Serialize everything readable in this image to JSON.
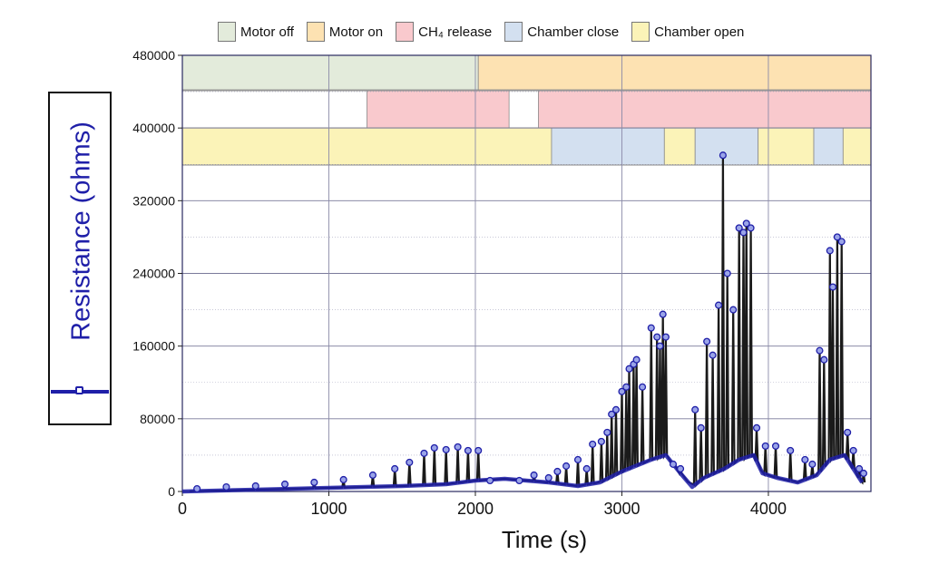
{
  "legend": [
    {
      "label": "Motor off",
      "color": "#e3ebdb"
    },
    {
      "label": "Motor on",
      "color": "#fde2b2"
    },
    {
      "label": "CH₄ release",
      "color": "#f9c9cd"
    },
    {
      "label": "Chamber close",
      "color": "#d3e0f0"
    },
    {
      "label": "Chamber open",
      "color": "#fbf3b8"
    }
  ],
  "chart_data": {
    "type": "line",
    "title": "",
    "xlabel": "Time (s)",
    "ylabel": "Resistance (ohms)",
    "xlim": [
      0,
      4700
    ],
    "ylim": [
      0,
      480000
    ],
    "xticks": [
      0,
      1000,
      2000,
      3000,
      4000
    ],
    "yticks": [
      0,
      80000,
      160000,
      240000,
      320000,
      400000,
      480000
    ],
    "grid": true,
    "series": [
      {
        "name": "Resistance (ohms)",
        "color": "#1f1fa8",
        "peaks": [
          [
            100,
            3000
          ],
          [
            300,
            5000
          ],
          [
            500,
            6000
          ],
          [
            700,
            8000
          ],
          [
            900,
            10000
          ],
          [
            1100,
            13000
          ],
          [
            1300,
            18000
          ],
          [
            1450,
            25000
          ],
          [
            1550,
            32000
          ],
          [
            1650,
            42000
          ],
          [
            1720,
            48000
          ],
          [
            1800,
            46000
          ],
          [
            1880,
            49000
          ],
          [
            1950,
            45000
          ],
          [
            2020,
            45000
          ],
          [
            2100,
            12000
          ],
          [
            2300,
            12000
          ],
          [
            2400,
            18000
          ],
          [
            2500,
            15000
          ],
          [
            2560,
            22000
          ],
          [
            2620,
            28000
          ],
          [
            2700,
            35000
          ],
          [
            2760,
            25000
          ],
          [
            2800,
            52000
          ],
          [
            2860,
            55000
          ],
          [
            2900,
            65000
          ],
          [
            2930,
            85000
          ],
          [
            2960,
            90000
          ],
          [
            3000,
            110000
          ],
          [
            3030,
            115000
          ],
          [
            3050,
            135000
          ],
          [
            3080,
            140000
          ],
          [
            3100,
            145000
          ],
          [
            3140,
            115000
          ],
          [
            3200,
            180000
          ],
          [
            3240,
            170000
          ],
          [
            3260,
            160000
          ],
          [
            3280,
            195000
          ],
          [
            3300,
            170000
          ],
          [
            3350,
            30000
          ],
          [
            3400,
            25000
          ],
          [
            3500,
            90000
          ],
          [
            3540,
            70000
          ],
          [
            3580,
            165000
          ],
          [
            3620,
            150000
          ],
          [
            3660,
            205000
          ],
          [
            3690,
            370000
          ],
          [
            3720,
            240000
          ],
          [
            3760,
            200000
          ],
          [
            3800,
            290000
          ],
          [
            3830,
            285000
          ],
          [
            3850,
            295000
          ],
          [
            3880,
            290000
          ],
          [
            3920,
            70000
          ],
          [
            3980,
            50000
          ],
          [
            4050,
            50000
          ],
          [
            4150,
            45000
          ],
          [
            4250,
            35000
          ],
          [
            4300,
            30000
          ],
          [
            4350,
            155000
          ],
          [
            4380,
            145000
          ],
          [
            4420,
            265000
          ],
          [
            4440,
            225000
          ],
          [
            4470,
            280000
          ],
          [
            4500,
            275000
          ],
          [
            4540,
            65000
          ],
          [
            4580,
            45000
          ],
          [
            4620,
            25000
          ],
          [
            4650,
            20000
          ]
        ],
        "envelope": [
          [
            0,
            0
          ],
          [
            500,
            2000
          ],
          [
            1000,
            4000
          ],
          [
            1500,
            6000
          ],
          [
            1800,
            8000
          ],
          [
            2000,
            12000
          ],
          [
            2200,
            14000
          ],
          [
            2500,
            10000
          ],
          [
            2700,
            6000
          ],
          [
            2850,
            10000
          ],
          [
            3000,
            22000
          ],
          [
            3200,
            35000
          ],
          [
            3300,
            40000
          ],
          [
            3400,
            20000
          ],
          [
            3480,
            5000
          ],
          [
            3560,
            15000
          ],
          [
            3700,
            25000
          ],
          [
            3800,
            35000
          ],
          [
            3900,
            40000
          ],
          [
            3960,
            20000
          ],
          [
            4060,
            15000
          ],
          [
            4200,
            10000
          ],
          [
            4330,
            18000
          ],
          [
            4420,
            35000
          ],
          [
            4520,
            40000
          ],
          [
            4600,
            20000
          ],
          [
            4640,
            10000
          ]
        ]
      }
    ],
    "state_bands": [
      {
        "row": "motor",
        "segments": [
          {
            "start": 0,
            "end": 2020,
            "state": "Motor off"
          },
          {
            "start": 2020,
            "end": 4700,
            "state": "Motor on"
          }
        ]
      },
      {
        "row": "ch4",
        "segments": [
          {
            "start": 1260,
            "end": 2230,
            "state": "CH₄ release"
          },
          {
            "start": 2430,
            "end": 4700,
            "state": "CH₄ release"
          }
        ]
      },
      {
        "row": "chamber",
        "segments": [
          {
            "start": 0,
            "end": 2520,
            "state": "Chamber open"
          },
          {
            "start": 2520,
            "end": 3290,
            "state": "Chamber close"
          },
          {
            "start": 3290,
            "end": 3500,
            "state": "Chamber open"
          },
          {
            "start": 3500,
            "end": 3930,
            "state": "Chamber close"
          },
          {
            "start": 3930,
            "end": 4310,
            "state": "Chamber open"
          },
          {
            "start": 4310,
            "end": 4510,
            "state": "Chamber close"
          },
          {
            "start": 4510,
            "end": 4700,
            "state": "Chamber open"
          }
        ]
      }
    ]
  }
}
